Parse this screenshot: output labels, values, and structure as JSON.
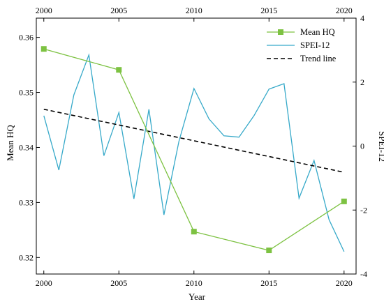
{
  "chart_data": {
    "type": "line",
    "title": "",
    "xlabel": "Year",
    "ylabel_left": "Mean HQ",
    "ylabel_right": "SPEI-12",
    "xlim": [
      1999.5,
      2020.8
    ],
    "ylim_left": [
      0.317,
      0.3635
    ],
    "ylim_right": [
      -4,
      4
    ],
    "x_ticks": [
      2000,
      2005,
      2010,
      2015,
      2020
    ],
    "y_ticks_left": [
      0.32,
      0.33,
      0.34,
      0.35,
      0.36
    ],
    "y_ticks_right": [
      -4,
      -2,
      0,
      2,
      4
    ],
    "grid": false,
    "legend_position": "top-right",
    "series": [
      {
        "name": "Mean HQ",
        "axis": "left",
        "color": "#7dc242",
        "marker": "square",
        "x": [
          2000,
          2005,
          2010,
          2015,
          2020
        ],
        "y": [
          0.3579,
          0.3541,
          0.3247,
          0.3213,
          0.3302
        ]
      },
      {
        "name": "SPEI-12",
        "axis": "right",
        "color": "#36a9c9",
        "marker": "none",
        "x": [
          2000,
          2001,
          2002,
          2003,
          2004,
          2005,
          2006,
          2007,
          2008,
          2009,
          2010,
          2011,
          2012,
          2013,
          2014,
          2015,
          2016,
          2017,
          2018,
          2019,
          2020
        ],
        "y": [
          0.95,
          -0.75,
          1.6,
          2.85,
          -0.3,
          1.05,
          -1.65,
          1.15,
          -2.15,
          0.15,
          1.8,
          0.85,
          0.32,
          0.28,
          0.95,
          1.78,
          1.95,
          -1.63,
          -0.45,
          -2.3,
          -3.3
        ]
      },
      {
        "name": "Trend line",
        "axis": "right",
        "color": "#000000",
        "dash": "dashed",
        "x": [
          2000,
          2020
        ],
        "y": [
          1.15,
          -0.82
        ]
      }
    ]
  }
}
